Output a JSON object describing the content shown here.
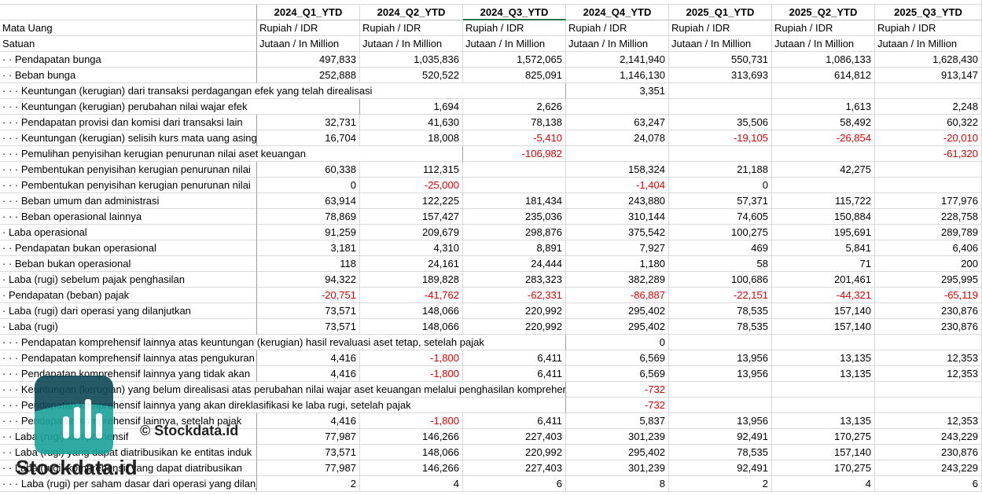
{
  "sheet": {
    "columns": [
      "2024_Q1_YTD",
      "2024_Q2_YTD",
      "2024_Q3_YTD",
      "2024_Q4_YTD",
      "2025_Q1_YTD",
      "2025_Q2_YTD",
      "2025_Q3_YTD"
    ],
    "meta_rows": [
      {
        "label": "Mata Uang",
        "cells": [
          "Rupiah / IDR",
          "Rupiah / IDR",
          "Rupiah / IDR",
          "Rupiah / IDR",
          "Rupiah / IDR",
          "Rupiah / IDR",
          "Rupiah / IDR"
        ]
      },
      {
        "label": "Satuan",
        "cells": [
          "Jutaan / In Million",
          "Jutaan / In Million",
          "Jutaan / In Million",
          "Jutaan / In Million",
          "Jutaan / In Million",
          "Jutaan / In Million",
          "Jutaan / In Million"
        ]
      }
    ],
    "rows": [
      {
        "label": "· · Pendapatan bunga",
        "cells": [
          "497,833",
          "1,035,836",
          "1,572,065",
          "2,141,940",
          "550,731",
          "1,086,133",
          "1,628,430"
        ]
      },
      {
        "label": "· · Beban bunga",
        "cells": [
          "252,888",
          "520,522",
          "825,091",
          "1,146,130",
          "313,693",
          "614,812",
          "913,147"
        ]
      },
      {
        "label": "· · · Keuntungan (kerugian) dari transaksi perdagangan efek yang telah direalisasi",
        "cells": [
          null,
          null,
          null,
          "3,351",
          null,
          null,
          null
        ]
      },
      {
        "label": "· · · Keuntungan (kerugian) perubahan nilai wajar efek",
        "cells": [
          null,
          "1,694",
          "2,626",
          null,
          null,
          "1,613",
          "2,248"
        ]
      },
      {
        "label": "· · · Pendapatan provisi dan komisi dari transaksi lain",
        "cells": [
          "32,731",
          "41,630",
          "78,138",
          "63,247",
          "35,506",
          "58,492",
          "60,322"
        ]
      },
      {
        "label": "· · · Keuntungan (kerugian) selisih kurs mata uang asing",
        "cells": [
          "16,704",
          "18,008",
          "-5,410",
          "24,078",
          "-19,105",
          "-26,854",
          "-20,010"
        ]
      },
      {
        "label": "· · · Pemulihan penyisihan kerugian penurunan nilai aset keuangan",
        "cells": [
          null,
          null,
          "-106,982",
          null,
          null,
          null,
          "-61,320"
        ]
      },
      {
        "label": "· · · Pembentukan penyisihan kerugian penurunan nilai",
        "cells": [
          "60,338",
          "112,315",
          null,
          "158,324",
          "21,188",
          "42,275",
          null
        ]
      },
      {
        "label": "· · · Pembentukan penyisihan kerugian penurunan nilai",
        "cells": [
          "0",
          "-25,000",
          null,
          "-1,404",
          "0",
          null,
          null
        ]
      },
      {
        "label": "· · · Beban umum dan administrasi",
        "cells": [
          "63,914",
          "122,225",
          "181,434",
          "243,880",
          "57,371",
          "115,722",
          "177,976"
        ]
      },
      {
        "label": "· · · Beban operasional lainnya",
        "cells": [
          "78,869",
          "157,427",
          "235,036",
          "310,144",
          "74,605",
          "150,884",
          "228,758"
        ]
      },
      {
        "label": "· Laba operasional",
        "cells": [
          "91,259",
          "209,679",
          "298,876",
          "375,542",
          "100,275",
          "195,691",
          "289,789"
        ]
      },
      {
        "label": "· · Pendapatan bukan operasional",
        "cells": [
          "3,181",
          "4,310",
          "8,891",
          "7,927",
          "469",
          "5,841",
          "6,406"
        ]
      },
      {
        "label": "· · Beban bukan operasional",
        "cells": [
          "118",
          "24,161",
          "24,444",
          "1,180",
          "58",
          "71",
          "200"
        ]
      },
      {
        "label": "· Laba (rugi) sebelum pajak penghasilan",
        "cells": [
          "94,322",
          "189,828",
          "283,323",
          "382,289",
          "100,686",
          "201,461",
          "295,995"
        ]
      },
      {
        "label": "· Pendapatan (beban) pajak",
        "cells": [
          "-20,751",
          "-41,762",
          "-62,331",
          "-86,887",
          "-22,151",
          "-44,321",
          "-65,119"
        ]
      },
      {
        "label": "· Laba (rugi) dari operasi yang dilanjutkan",
        "cells": [
          "73,571",
          "148,066",
          "220,992",
          "295,402",
          "78,535",
          "157,140",
          "230,876"
        ]
      },
      {
        "label": "· Laba (rugi)",
        "cells": [
          "73,571",
          "148,066",
          "220,992",
          "295,402",
          "78,535",
          "157,140",
          "230,876"
        ]
      },
      {
        "label": "· · · Pendapatan komprehensif lainnya atas keuntungan (kerugian) hasil revaluasi aset tetap, setelah pajak",
        "cells": [
          null,
          null,
          null,
          "0",
          null,
          null,
          null
        ]
      },
      {
        "label": "· · · Pendapatan komprehensif lainnya atas pengukuran",
        "cells": [
          "4,416",
          "-1,800",
          "6,411",
          "6,569",
          "13,956",
          "13,135",
          "12,353"
        ]
      },
      {
        "label": "· · · Pendapatan komprehensif lainnya yang tidak akan",
        "cells": [
          "4,416",
          "-1,800",
          "6,411",
          "6,569",
          "13,956",
          "13,135",
          "12,353"
        ]
      },
      {
        "label": "· · · Keuntungan (kerugian) yang belum direalisasi atas perubahan nilai wajar aset keuangan melalui penghasilan komprehensif lain",
        "cells": [
          null,
          null,
          null,
          "-732",
          null,
          null,
          null
        ]
      },
      {
        "label": "· · · Pendapatan komprehensif lainnya yang akan direklasifikasi ke laba rugi, setelah pajak",
        "cells": [
          null,
          null,
          null,
          "-732",
          null,
          null,
          null
        ]
      },
      {
        "label": "· · · Pendapatan komprehensif lainnya, setelah pajak",
        "cells": [
          "4,416",
          "-1,800",
          "6,411",
          "5,837",
          "13,956",
          "13,135",
          "12,353"
        ]
      },
      {
        "label": "· · Laba (rugi) komprehensif",
        "cells": [
          "77,987",
          "146,266",
          "227,403",
          "301,239",
          "92,491",
          "170,275",
          "243,229"
        ]
      },
      {
        "label": "· · Laba (rugi) yang dapat diatribusikan ke entitas induk",
        "cells": [
          "73,571",
          "148,066",
          "220,992",
          "295,402",
          "78,535",
          "157,140",
          "230,876"
        ]
      },
      {
        "label": "· · Laba (rugi) komprehensif yang dapat diatribusikan",
        "cells": [
          "77,987",
          "146,266",
          "227,403",
          "301,239",
          "92,491",
          "170,275",
          "243,229"
        ]
      },
      {
        "label": "· · · Laba (rugi) per saham dasar dari operasi yang dilanjutkan",
        "cells": [
          "2",
          "4",
          "6",
          "8",
          "2",
          "4",
          "6"
        ]
      }
    ]
  },
  "watermark": {
    "copyright": "© Stockdata.id",
    "brand": "Stockdata.id"
  }
}
